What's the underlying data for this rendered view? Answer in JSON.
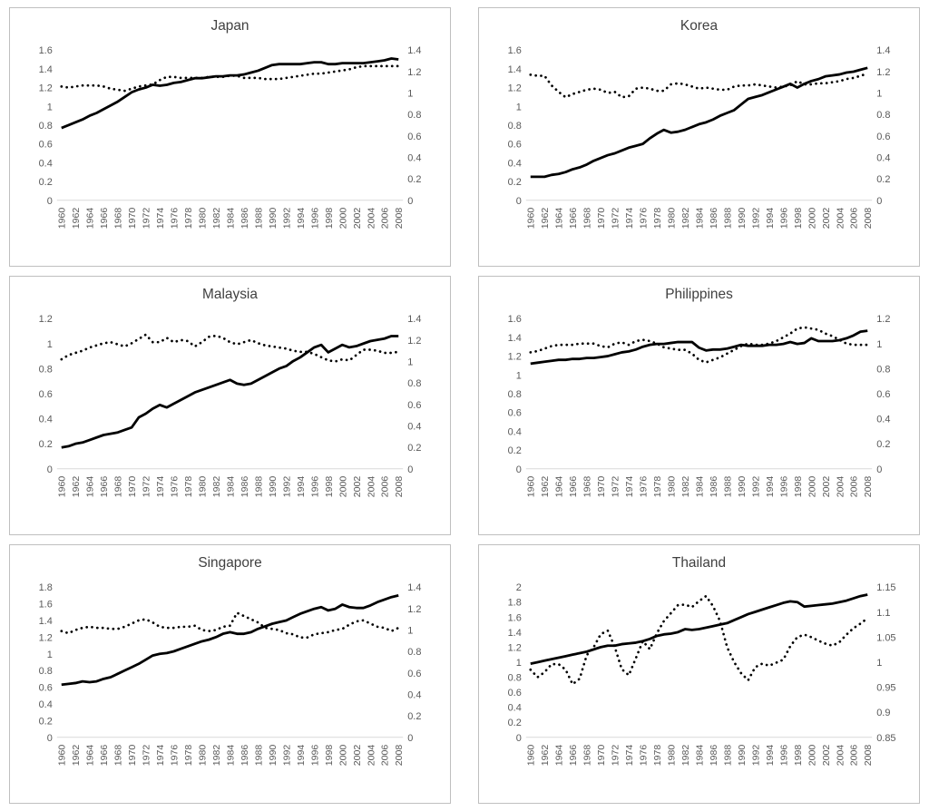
{
  "style": {
    "background": "#ffffff",
    "panel_border_color": "#bfbfbf",
    "line_color": "#000000",
    "title_color": "#404040",
    "tick_color": "#595959",
    "axis_line_color": "#d9d9d9"
  },
  "chart_data": [
    {
      "type": "line",
      "title": "Japan",
      "x_start": 1960,
      "x_end": 2008,
      "x_tick_labels": [
        "1960",
        "1962",
        "1964",
        "1966",
        "1968",
        "1970",
        "1972",
        "1974",
        "1976",
        "1978",
        "1980",
        "1982",
        "1984",
        "1986",
        "1988",
        "1990",
        "1992",
        "1994",
        "1996",
        "1998",
        "2000",
        "2002",
        "2004",
        "2006",
        "2008"
      ],
      "left_axis": {
        "min": 0,
        "max": 1.6,
        "ticks": [
          "0",
          "0.2",
          "0.4",
          "0.6",
          "0.8",
          "1",
          "1.2",
          "1.4",
          "1.6"
        ]
      },
      "right_axis": {
        "min": 0,
        "max": 1.4,
        "ticks": [
          "0",
          "0.2",
          "0.4",
          "0.6",
          "0.8",
          "1",
          "1.2",
          "1.4"
        ]
      },
      "grid": false,
      "legend": "none",
      "series": [
        {
          "name": "solid",
          "axis": "left",
          "style": "solid",
          "values": [
            0.77,
            0.8,
            0.83,
            0.86,
            0.9,
            0.93,
            0.97,
            1.01,
            1.05,
            1.1,
            1.15,
            1.18,
            1.2,
            1.23,
            1.22,
            1.23,
            1.25,
            1.26,
            1.28,
            1.3,
            1.3,
            1.31,
            1.32,
            1.32,
            1.33,
            1.33,
            1.34,
            1.36,
            1.38,
            1.41,
            1.44,
            1.45,
            1.45,
            1.45,
            1.45,
            1.46,
            1.47,
            1.47,
            1.45,
            1.45,
            1.46,
            1.46,
            1.46,
            1.46,
            1.47,
            1.48,
            1.49,
            1.51,
            1.5
          ]
        },
        {
          "name": "dotted",
          "axis": "right",
          "style": "dotted",
          "values": [
            1.06,
            1.05,
            1.06,
            1.07,
            1.07,
            1.07,
            1.06,
            1.04,
            1.03,
            1.02,
            1.04,
            1.06,
            1.07,
            1.08,
            1.12,
            1.15,
            1.15,
            1.14,
            1.14,
            1.14,
            1.14,
            1.15,
            1.15,
            1.15,
            1.16,
            1.16,
            1.14,
            1.14,
            1.14,
            1.13,
            1.13,
            1.13,
            1.14,
            1.15,
            1.16,
            1.17,
            1.18,
            1.18,
            1.19,
            1.2,
            1.21,
            1.22,
            1.24,
            1.25,
            1.25,
            1.25,
            1.25,
            1.25,
            1.25
          ]
        }
      ]
    },
    {
      "type": "line",
      "title": "Korea",
      "x_start": 1960,
      "x_end": 2008,
      "x_tick_labels": [
        "1960",
        "1962",
        "1964",
        "1966",
        "1968",
        "1970",
        "1972",
        "1974",
        "1976",
        "1978",
        "1980",
        "1982",
        "1984",
        "1986",
        "1988",
        "1990",
        "1992",
        "1994",
        "1996",
        "1998",
        "2000",
        "2002",
        "2004",
        "2006",
        "2008"
      ],
      "left_axis": {
        "min": 0,
        "max": 1.6,
        "ticks": [
          "0",
          "0.2",
          "0.4",
          "0.6",
          "0.8",
          "1",
          "1.2",
          "1.4",
          "1.6"
        ]
      },
      "right_axis": {
        "min": 0,
        "max": 1.4,
        "ticks": [
          "0",
          "0.2",
          "0.4",
          "0.6",
          "0.8",
          "1",
          "1.2",
          "1.4"
        ]
      },
      "grid": false,
      "legend": "none",
      "series": [
        {
          "name": "solid",
          "axis": "left",
          "style": "solid",
          "values": [
            0.25,
            0.25,
            0.25,
            0.27,
            0.28,
            0.3,
            0.33,
            0.35,
            0.38,
            0.42,
            0.45,
            0.48,
            0.5,
            0.53,
            0.56,
            0.58,
            0.6,
            0.66,
            0.71,
            0.75,
            0.72,
            0.73,
            0.75,
            0.78,
            0.81,
            0.83,
            0.86,
            0.9,
            0.93,
            0.96,
            1.02,
            1.08,
            1.1,
            1.12,
            1.15,
            1.18,
            1.21,
            1.24,
            1.2,
            1.24,
            1.27,
            1.29,
            1.32,
            1.33,
            1.34,
            1.36,
            1.37,
            1.39,
            1.41
          ]
        },
        {
          "name": "dotted",
          "axis": "right",
          "style": "dotted",
          "values": [
            1.17,
            1.16,
            1.16,
            1.07,
            1.01,
            0.96,
            0.99,
            1.01,
            1.03,
            1.04,
            1.03,
            1.0,
            1.01,
            0.96,
            0.97,
            1.04,
            1.05,
            1.04,
            1.02,
            1.02,
            1.08,
            1.09,
            1.08,
            1.06,
            1.04,
            1.05,
            1.04,
            1.03,
            1.03,
            1.06,
            1.07,
            1.07,
            1.08,
            1.07,
            1.06,
            1.05,
            1.06,
            1.07,
            1.11,
            1.08,
            1.08,
            1.09,
            1.09,
            1.1,
            1.11,
            1.13,
            1.14,
            1.16,
            1.18
          ]
        }
      ]
    },
    {
      "type": "line",
      "title": "Malaysia",
      "x_start": 1960,
      "x_end": 2008,
      "x_tick_labels": [
        "1960",
        "1962",
        "1964",
        "1966",
        "1968",
        "1970",
        "1972",
        "1974",
        "1976",
        "1978",
        "1980",
        "1982",
        "1984",
        "1986",
        "1988",
        "1990",
        "1992",
        "1994",
        "1996",
        "1998",
        "2000",
        "2002",
        "2004",
        "2006",
        "2008"
      ],
      "left_axis": {
        "min": 0,
        "max": 1.2,
        "ticks": [
          "0",
          "0.2",
          "0.4",
          "0.6",
          "0.8",
          "1",
          "1.2"
        ]
      },
      "right_axis": {
        "min": 0,
        "max": 1.4,
        "ticks": [
          "0",
          "0.2",
          "0.4",
          "0.6",
          "0.8",
          "1",
          "1.2",
          "1.4"
        ]
      },
      "grid": false,
      "legend": "none",
      "series": [
        {
          "name": "solid",
          "axis": "left",
          "style": "solid",
          "values": [
            0.17,
            0.18,
            0.2,
            0.21,
            0.23,
            0.25,
            0.27,
            0.28,
            0.29,
            0.31,
            0.33,
            0.41,
            0.44,
            0.48,
            0.51,
            0.49,
            0.52,
            0.55,
            0.58,
            0.61,
            0.63,
            0.65,
            0.67,
            0.69,
            0.71,
            0.68,
            0.67,
            0.68,
            0.71,
            0.74,
            0.77,
            0.8,
            0.82,
            0.86,
            0.89,
            0.93,
            0.97,
            0.99,
            0.93,
            0.96,
            0.99,
            0.97,
            0.98,
            1.0,
            1.02,
            1.03,
            1.04,
            1.06,
            1.06
          ]
        },
        {
          "name": "dotted",
          "axis": "right",
          "style": "dotted",
          "values": [
            1.02,
            1.06,
            1.08,
            1.1,
            1.13,
            1.15,
            1.17,
            1.18,
            1.16,
            1.14,
            1.17,
            1.21,
            1.25,
            1.18,
            1.18,
            1.22,
            1.18,
            1.2,
            1.19,
            1.14,
            1.18,
            1.23,
            1.24,
            1.22,
            1.18,
            1.16,
            1.18,
            1.2,
            1.17,
            1.15,
            1.14,
            1.13,
            1.12,
            1.1,
            1.09,
            1.09,
            1.07,
            1.04,
            1.01,
            1.0,
            1.02,
            1.01,
            1.06,
            1.11,
            1.11,
            1.1,
            1.08,
            1.08,
            1.09
          ]
        }
      ]
    },
    {
      "type": "line",
      "title": "Philippines",
      "x_start": 1960,
      "x_end": 2008,
      "x_tick_labels": [
        "1960",
        "1962",
        "1964",
        "1966",
        "1968",
        "1970",
        "1972",
        "1974",
        "1976",
        "1978",
        "1980",
        "1982",
        "1984",
        "1986",
        "1988",
        "1990",
        "1992",
        "1994",
        "1996",
        "1998",
        "2000",
        "2002",
        "2004",
        "2006",
        "2008"
      ],
      "left_axis": {
        "min": 0,
        "max": 1.6,
        "ticks": [
          "0",
          "0.2",
          "0.4",
          "0.6",
          "0.8",
          "1",
          "1.2",
          "1.4",
          "1.6"
        ]
      },
      "right_axis": {
        "min": 0,
        "max": 1.2,
        "ticks": [
          "0",
          "0.2",
          "0.4",
          "0.6",
          "0.8",
          "1",
          "1.2"
        ]
      },
      "grid": false,
      "legend": "none",
      "series": [
        {
          "name": "solid",
          "axis": "left",
          "style": "solid",
          "values": [
            1.12,
            1.13,
            1.14,
            1.15,
            1.16,
            1.16,
            1.17,
            1.17,
            1.18,
            1.18,
            1.19,
            1.2,
            1.22,
            1.24,
            1.25,
            1.27,
            1.3,
            1.32,
            1.33,
            1.33,
            1.34,
            1.35,
            1.35,
            1.35,
            1.29,
            1.26,
            1.27,
            1.27,
            1.28,
            1.3,
            1.32,
            1.31,
            1.31,
            1.31,
            1.32,
            1.32,
            1.33,
            1.35,
            1.33,
            1.34,
            1.39,
            1.36,
            1.36,
            1.36,
            1.37,
            1.39,
            1.42,
            1.46,
            1.47
          ]
        },
        {
          "name": "dotted",
          "axis": "right",
          "style": "dotted",
          "values": [
            0.93,
            0.94,
            0.96,
            0.98,
            0.99,
            0.99,
            0.99,
            1.0,
            1.0,
            1.0,
            0.98,
            0.97,
            1.0,
            1.01,
            0.99,
            1.02,
            1.03,
            1.02,
            1.0,
            0.97,
            0.96,
            0.95,
            0.95,
            0.92,
            0.87,
            0.85,
            0.87,
            0.89,
            0.92,
            0.95,
            0.98,
            1.0,
            0.99,
            0.99,
            1.0,
            1.02,
            1.05,
            1.08,
            1.12,
            1.13,
            1.12,
            1.11,
            1.08,
            1.06,
            1.03,
            1.0,
            0.99,
            0.99,
            0.99
          ]
        }
      ]
    },
    {
      "type": "line",
      "title": "Singapore",
      "x_start": 1960,
      "x_end": 2008,
      "x_tick_labels": [
        "1960",
        "1962",
        "1964",
        "1966",
        "1968",
        "1970",
        "1972",
        "1974",
        "1976",
        "1978",
        "1980",
        "1982",
        "1984",
        "1986",
        "1988",
        "1990",
        "1992",
        "1994",
        "1996",
        "1998",
        "2000",
        "2002",
        "2004",
        "2006",
        "2008"
      ],
      "left_axis": {
        "min": 0,
        "max": 1.8,
        "ticks": [
          "0",
          "0.2",
          "0.4",
          "0.6",
          "0.8",
          "1",
          "1.2",
          "1.4",
          "1.6",
          "1.8"
        ]
      },
      "right_axis": {
        "min": 0,
        "max": 1.4,
        "ticks": [
          "0",
          "0.2",
          "0.4",
          "0.6",
          "0.8",
          "1",
          "1.2",
          "1.4"
        ]
      },
      "grid": false,
      "legend": "none",
      "series": [
        {
          "name": "solid",
          "axis": "left",
          "style": "solid",
          "values": [
            0.63,
            0.64,
            0.65,
            0.67,
            0.66,
            0.67,
            0.7,
            0.72,
            0.76,
            0.8,
            0.84,
            0.88,
            0.93,
            0.98,
            1.0,
            1.01,
            1.03,
            1.06,
            1.09,
            1.12,
            1.15,
            1.17,
            1.2,
            1.24,
            1.26,
            1.24,
            1.24,
            1.26,
            1.3,
            1.33,
            1.36,
            1.38,
            1.4,
            1.44,
            1.48,
            1.51,
            1.54,
            1.56,
            1.52,
            1.54,
            1.59,
            1.56,
            1.55,
            1.55,
            1.58,
            1.62,
            1.65,
            1.68,
            1.7
          ]
        },
        {
          "name": "dotted",
          "axis": "right",
          "style": "dotted",
          "values": [
            0.99,
            0.97,
            1.0,
            1.02,
            1.03,
            1.02,
            1.02,
            1.01,
            1.01,
            1.03,
            1.06,
            1.09,
            1.1,
            1.07,
            1.03,
            1.02,
            1.02,
            1.03,
            1.03,
            1.04,
            1.0,
            0.99,
            1.0,
            1.03,
            1.04,
            1.16,
            1.13,
            1.1,
            1.07,
            1.02,
            1.01,
            1.0,
            0.97,
            0.96,
            0.93,
            0.93,
            0.96,
            0.97,
            0.98,
            1.0,
            1.01,
            1.05,
            1.08,
            1.09,
            1.06,
            1.03,
            1.02,
            0.99,
            1.02
          ]
        }
      ]
    },
    {
      "type": "line",
      "title": "Thailand",
      "x_start": 1960,
      "x_end": 2008,
      "x_tick_labels": [
        "1960",
        "1962",
        "1964",
        "1966",
        "1968",
        "1970",
        "1972",
        "1974",
        "1976",
        "1978",
        "1980",
        "1982",
        "1984",
        "1986",
        "1988",
        "1990",
        "1992",
        "1994",
        "1996",
        "1998",
        "2000",
        "2002",
        "2004",
        "2006",
        "2008"
      ],
      "left_axis": {
        "min": 0,
        "max": 2,
        "ticks": [
          "0",
          "0.2",
          "0.4",
          "0.6",
          "0.8",
          "1",
          "1.2",
          "1.4",
          "1.6",
          "1.8",
          "2"
        ]
      },
      "right_axis": {
        "min": 0.85,
        "max": 1.15,
        "ticks": [
          "0.85",
          "0.9",
          "0.95",
          "1",
          "1.05",
          "1.1",
          "1.15"
        ]
      },
      "grid": false,
      "legend": "none",
      "series": [
        {
          "name": "solid",
          "axis": "left",
          "style": "solid",
          "values": [
            0.98,
            1.0,
            1.02,
            1.04,
            1.06,
            1.08,
            1.1,
            1.12,
            1.14,
            1.17,
            1.2,
            1.22,
            1.22,
            1.24,
            1.25,
            1.26,
            1.28,
            1.31,
            1.35,
            1.37,
            1.38,
            1.4,
            1.44,
            1.43,
            1.44,
            1.46,
            1.48,
            1.5,
            1.52,
            1.56,
            1.6,
            1.64,
            1.67,
            1.7,
            1.73,
            1.76,
            1.79,
            1.81,
            1.8,
            1.74,
            1.75,
            1.76,
            1.77,
            1.78,
            1.8,
            1.82,
            1.85,
            1.88,
            1.9
          ]
        },
        {
          "name": "dotted",
          "axis": "right",
          "style": "dotted",
          "values": [
            0.985,
            0.97,
            0.98,
            0.996,
            0.996,
            0.985,
            0.956,
            0.967,
            1.014,
            1.03,
            1.056,
            1.063,
            1.03,
            0.986,
            0.974,
            1.008,
            1.042,
            1.026,
            1.058,
            1.082,
            1.098,
            1.114,
            1.115,
            1.11,
            1.122,
            1.132,
            1.112,
            1.082,
            1.03,
            1.0,
            0.978,
            0.964,
            0.99,
            0.997,
            0.993,
            0.999,
            1.005,
            1.032,
            1.05,
            1.055,
            1.05,
            1.043,
            1.037,
            1.033,
            1.04,
            1.055,
            1.068,
            1.077,
            1.088
          ]
        }
      ]
    }
  ]
}
